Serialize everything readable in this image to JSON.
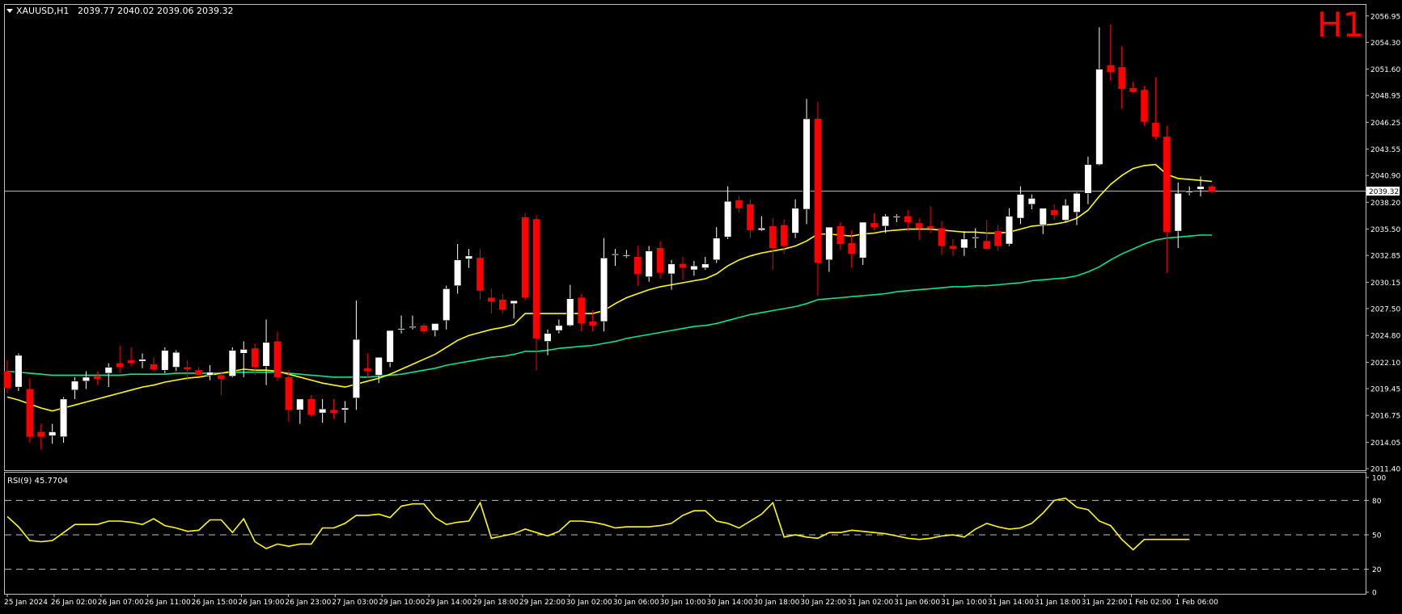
{
  "app": {
    "symbol_label": "XAUUSD,H1",
    "ohlc": "2039.77 2040.02 2039.06 2039.32",
    "timeframe_badge": "H1",
    "current_price_label": "2039.32",
    "rsi_label": "RSI(9) 45.7704"
  },
  "colors": {
    "background": "#000000",
    "frame": "#c0c0c0",
    "bull_candle": "#ffffff",
    "bear_candle": "#ff0000",
    "wick_bull": "#ffffff",
    "wick_bear": "#ff0000",
    "ma_fast": "#ffff00",
    "ma_slow": "#00e59a",
    "rsi_line": "#ffff00",
    "badge": "#ff0000",
    "text": "#ffffff"
  },
  "chart_data": [
    {
      "type": "candlestick",
      "title": "XAUUSD,H1",
      "y_axis_ticks": [
        "2056.95",
        "2054.30",
        "2051.60",
        "2048.95",
        "2046.25",
        "2043.55",
        "2040.90",
        "2038.20",
        "2035.50",
        "2032.85",
        "2030.15",
        "2027.50",
        "2024.80",
        "2022.10",
        "2019.45",
        "2016.75",
        "2014.05",
        "2011.40"
      ],
      "ylim": [
        2011.4,
        2057.5
      ],
      "last_price": 2039.32,
      "x_tick_labels": [
        "25 Jan 2024",
        "26 Jan 02:00",
        "26 Jan 07:00",
        "26 Jan 11:00",
        "26 Jan 15:00",
        "26 Jan 19:00",
        "26 Jan 23:00",
        "27 Jan 03:00",
        "29 Jan 10:00",
        "29 Jan 14:00",
        "29 Jan 18:00",
        "29 Jan 22:00",
        "30 Jan 02:00",
        "30 Jan 06:00",
        "30 Jan 10:00",
        "30 Jan 14:00",
        "30 Jan 18:00",
        "30 Jan 22:00",
        "31 Jan 02:00",
        "31 Jan 06:00",
        "31 Jan 10:00",
        "31 Jan 14:00",
        "31 Jan 18:00",
        "31 Jan 22:00",
        "1 Feb 02:00",
        "1 Feb 06:00"
      ],
      "candles": [
        [
          2021.2,
          2022.3,
          2019.0,
          2019.5
        ],
        [
          2019.6,
          2023.0,
          2019.2,
          2022.8
        ],
        [
          2019.4,
          2020.5,
          2014.0,
          2014.6
        ],
        [
          2015.1,
          2015.9,
          2013.3,
          2014.6
        ],
        [
          2014.7,
          2015.9,
          2013.9,
          2015.1
        ],
        [
          2014.6,
          2018.6,
          2014.0,
          2018.4
        ],
        [
          2019.3,
          2020.6,
          2018.4,
          2020.2
        ],
        [
          2020.2,
          2021.2,
          2019.4,
          2020.6
        ],
        [
          2020.7,
          2021.2,
          2019.8,
          2020.4
        ],
        [
          2021.0,
          2022.0,
          2019.6,
          2021.6
        ],
        [
          2022.0,
          2023.8,
          2021.0,
          2021.6
        ],
        [
          2022.3,
          2023.6,
          2021.7,
          2022.0
        ],
        [
          2022.2,
          2023.0,
          2021.5,
          2022.4
        ],
        [
          2021.9,
          2022.6,
          2021.2,
          2021.4
        ],
        [
          2021.3,
          2023.6,
          2021.0,
          2023.3
        ],
        [
          2021.6,
          2023.3,
          2021.2,
          2023.1
        ],
        [
          2021.6,
          2022.3,
          2020.3,
          2021.4
        ],
        [
          2021.3,
          2021.6,
          2020.8,
          2020.8
        ],
        [
          2020.8,
          2021.8,
          2020.3,
          2021.1
        ],
        [
          2020.8,
          2021.2,
          2018.8,
          2020.4
        ],
        [
          2020.7,
          2023.6,
          2020.6,
          2023.3
        ],
        [
          2023.0,
          2024.2,
          2020.6,
          2023.4
        ],
        [
          2023.5,
          2024.0,
          2020.8,
          2021.6
        ],
        [
          2021.7,
          2026.4,
          2019.8,
          2024.1
        ],
        [
          2024.2,
          2025.2,
          2020.2,
          2020.6
        ],
        [
          2020.6,
          2021.3,
          2016.1,
          2017.3
        ],
        [
          2017.3,
          2018.2,
          2015.9,
          2018.4
        ],
        [
          2018.4,
          2018.8,
          2016.6,
          2016.8
        ],
        [
          2017.0,
          2018.4,
          2016.0,
          2017.4
        ],
        [
          2017.3,
          2018.4,
          2016.4,
          2017.0
        ],
        [
          2017.3,
          2018.2,
          2016.0,
          2017.5
        ],
        [
          2018.5,
          2028.3,
          2017.3,
          2024.4
        ],
        [
          2021.5,
          2023.0,
          2020.5,
          2021.2
        ],
        [
          2020.8,
          2022.6,
          2020.0,
          2022.6
        ],
        [
          2022.1,
          2025.2,
          2021.6,
          2025.3
        ],
        [
          2025.5,
          2026.8,
          2025.0,
          2025.5
        ],
        [
          2025.6,
          2026.8,
          2025.4,
          2025.7
        ],
        [
          2025.8,
          2026.0,
          2025.0,
          2025.2
        ],
        [
          2025.3,
          2026.0,
          2024.7,
          2026.0
        ],
        [
          2026.3,
          2029.8,
          2025.4,
          2029.5
        ],
        [
          2029.8,
          2034.0,
          2029.0,
          2032.4
        ],
        [
          2032.5,
          2033.5,
          2031.6,
          2032.8
        ],
        [
          2032.6,
          2033.5,
          2028.4,
          2029.3
        ],
        [
          2028.6,
          2029.5,
          2027.0,
          2028.2
        ],
        [
          2028.4,
          2029.0,
          2027.0,
          2027.4
        ],
        [
          2028.0,
          2028.3,
          2026.5,
          2028.3
        ],
        [
          2036.7,
          2037.1,
          2028.3,
          2028.6
        ],
        [
          2036.5,
          2036.9,
          2021.3,
          2024.5
        ],
        [
          2024.2,
          2025.4,
          2022.8,
          2025.0
        ],
        [
          2025.3,
          2026.4,
          2025.0,
          2025.8
        ],
        [
          2025.8,
          2029.9,
          2025.7,
          2028.5
        ],
        [
          2028.6,
          2029.0,
          2025.2,
          2026.0
        ],
        [
          2026.2,
          2027.3,
          2025.2,
          2025.8
        ],
        [
          2026.2,
          2034.6,
          2025.2,
          2032.6
        ],
        [
          2032.9,
          2033.5,
          2031.8,
          2033.0
        ],
        [
          2032.8,
          2033.4,
          2032.6,
          2032.9
        ],
        [
          2032.7,
          2033.8,
          2029.8,
          2031.0
        ],
        [
          2030.7,
          2033.8,
          2030.2,
          2033.3
        ],
        [
          2033.6,
          2034.3,
          2030.5,
          2031.1
        ],
        [
          2031.0,
          2032.4,
          2029.4,
          2032.0
        ],
        [
          2032.0,
          2032.7,
          2030.4,
          2031.6
        ],
        [
          2031.4,
          2032.3,
          2030.8,
          2031.8
        ],
        [
          2031.6,
          2032.7,
          2031.4,
          2032.0
        ],
        [
          2032.4,
          2035.7,
          2032.1,
          2034.6
        ],
        [
          2034.7,
          2039.8,
          2034.5,
          2038.3
        ],
        [
          2038.4,
          2038.8,
          2037.2,
          2037.6
        ],
        [
          2038.0,
          2038.5,
          2034.6,
          2035.4
        ],
        [
          2035.4,
          2036.8,
          2035.3,
          2035.6
        ],
        [
          2035.8,
          2036.6,
          2031.4,
          2033.6
        ],
        [
          2035.9,
          2036.5,
          2033.0,
          2033.8
        ],
        [
          2035.1,
          2038.5,
          2034.6,
          2037.6
        ],
        [
          2037.5,
          2048.6,
          2036.0,
          2046.6
        ],
        [
          2046.6,
          2048.3,
          2028.8,
          2032.1
        ],
        [
          2032.4,
          2035.6,
          2031.2,
          2035.7
        ],
        [
          2035.8,
          2036.2,
          2033.4,
          2034.0
        ],
        [
          2034.1,
          2035.4,
          2031.6,
          2033.0
        ],
        [
          2032.6,
          2035.9,
          2031.9,
          2036.2
        ],
        [
          2036.1,
          2037.1,
          2035.4,
          2035.7
        ],
        [
          2035.8,
          2037.0,
          2035.1,
          2036.8
        ],
        [
          2036.7,
          2037.0,
          2036.2,
          2036.8
        ],
        [
          2036.8,
          2037.4,
          2035.3,
          2036.2
        ],
        [
          2036.1,
          2036.6,
          2034.4,
          2035.6
        ],
        [
          2035.8,
          2037.8,
          2035.1,
          2035.6
        ],
        [
          2035.6,
          2036.3,
          2032.9,
          2033.8
        ],
        [
          2033.8,
          2034.5,
          2032.8,
          2033.5
        ],
        [
          2033.6,
          2035.3,
          2032.8,
          2034.5
        ],
        [
          2034.6,
          2035.6,
          2033.6,
          2034.7
        ],
        [
          2034.3,
          2036.4,
          2033.4,
          2033.5
        ],
        [
          2035.3,
          2035.9,
          2033.3,
          2033.8
        ],
        [
          2034.0,
          2037.6,
          2033.8,
          2036.8
        ],
        [
          2036.6,
          2039.8,
          2036.0,
          2039.0
        ],
        [
          2038.0,
          2039.0,
          2037.5,
          2038.6
        ],
        [
          2035.9,
          2037.6,
          2035.0,
          2037.6
        ],
        [
          2037.4,
          2038.0,
          2036.4,
          2036.9
        ],
        [
          2036.4,
          2038.5,
          2036.2,
          2037.9
        ],
        [
          2037.2,
          2039.2,
          2035.9,
          2039.1
        ],
        [
          2039.1,
          2042.8,
          2038.0,
          2042.0
        ],
        [
          2042.0,
          2055.8,
          2041.9,
          2051.6
        ],
        [
          2052.0,
          2056.1,
          2050.4,
          2051.3
        ],
        [
          2051.8,
          2053.9,
          2047.6,
          2049.6
        ],
        [
          2049.7,
          2050.3,
          2049.2,
          2049.3
        ],
        [
          2049.5,
          2049.9,
          2045.9,
          2046.3
        ],
        [
          2046.2,
          2050.8,
          2044.5,
          2044.8
        ],
        [
          2044.8,
          2045.9,
          2031.1,
          2035.2
        ],
        [
          2035.3,
          2040.2,
          2033.6,
          2039.1
        ],
        [
          2039.3,
          2039.8,
          2038.9,
          2039.3
        ],
        [
          2039.5,
          2040.8,
          2038.8,
          2039.8
        ],
        [
          2039.8,
          2040.0,
          2039.1,
          2039.3
        ]
      ],
      "ma_fast": [
        2018.6,
        2018.3,
        2017.9,
        2017.5,
        2017.2,
        2017.5,
        2017.8,
        2018.1,
        2018.4,
        2018.7,
        2019.0,
        2019.3,
        2019.6,
        2019.8,
        2020.1,
        2020.3,
        2020.5,
        2020.6,
        2020.8,
        2021.0,
        2021.2,
        2021.4,
        2021.3,
        2021.3,
        2021.2,
        2020.9,
        2020.6,
        2020.3,
        2020.0,
        2019.8,
        2019.6,
        2019.9,
        2020.2,
        2020.5,
        2020.9,
        2021.4,
        2021.9,
        2022.4,
        2022.9,
        2023.6,
        2024.3,
        2024.8,
        2025.1,
        2025.4,
        2025.6,
        2025.9,
        2027.0,
        2027.0,
        2027.0,
        2027.0,
        2027.0,
        2027.0,
        2027.0,
        2027.3,
        2028.0,
        2028.6,
        2029.0,
        2029.4,
        2029.7,
        2029.9,
        2030.1,
        2030.3,
        2030.5,
        2031.0,
        2031.8,
        2032.4,
        2032.8,
        2033.1,
        2033.3,
        2033.5,
        2033.8,
        2034.3,
        2035.0,
        2035.0,
        2034.9,
        2034.8,
        2035.0,
        2035.1,
        2035.3,
        2035.4,
        2035.5,
        2035.5,
        2035.5,
        2035.4,
        2035.3,
        2035.2,
        2035.2,
        2035.1,
        2035.1,
        2035.2,
        2035.5,
        2035.8,
        2035.9,
        2036.0,
        2036.2,
        2036.6,
        2037.4,
        2038.8,
        2040.0,
        2040.9,
        2041.6,
        2041.9,
        2042.0,
        2041.0,
        2040.6,
        2040.5,
        2040.4,
        2040.3
      ],
      "ma_slow": [
        2021.2,
        2021.1,
        2021.0,
        2020.9,
        2020.8,
        2020.8,
        2020.8,
        2020.8,
        2020.8,
        2020.8,
        2020.8,
        2020.9,
        2020.9,
        2020.9,
        2020.9,
        2021.0,
        2021.0,
        2021.0,
        2021.0,
        2021.0,
        2021.1,
        2021.1,
        2021.1,
        2021.1,
        2021.1,
        2021.0,
        2020.9,
        2020.8,
        2020.7,
        2020.6,
        2020.6,
        2020.6,
        2020.6,
        2020.7,
        2020.8,
        2020.9,
        2021.1,
        2021.3,
        2021.5,
        2021.8,
        2022.0,
        2022.2,
        2022.4,
        2022.6,
        2022.7,
        2022.9,
        2023.2,
        2023.2,
        2023.3,
        2023.5,
        2023.6,
        2023.7,
        2023.8,
        2024.0,
        2024.2,
        2024.5,
        2024.7,
        2024.9,
        2025.1,
        2025.3,
        2025.5,
        2025.7,
        2025.8,
        2026.0,
        2026.3,
        2026.6,
        2026.9,
        2027.1,
        2027.3,
        2027.5,
        2027.7,
        2028.0,
        2028.4,
        2028.5,
        2028.6,
        2028.7,
        2028.8,
        2028.9,
        2029.0,
        2029.2,
        2029.3,
        2029.4,
        2029.5,
        2029.6,
        2029.7,
        2029.7,
        2029.8,
        2029.8,
        2029.9,
        2030.0,
        2030.1,
        2030.3,
        2030.4,
        2030.5,
        2030.6,
        2030.8,
        2031.2,
        2031.7,
        2032.4,
        2033.0,
        2033.5,
        2034.0,
        2034.4,
        2034.6,
        2034.7,
        2034.8,
        2034.9,
        2034.9
      ]
    },
    {
      "type": "line",
      "title": "RSI(9) 45.7704",
      "ylim": [
        0,
        100
      ],
      "y_axis_ticks": [
        "100",
        "80",
        "50",
        "20",
        "0"
      ],
      "levels": [
        80,
        50,
        20
      ],
      "series": [
        {
          "name": "RSI(9)",
          "values": [
            66,
            57,
            45,
            44,
            45,
            52,
            59,
            59,
            59,
            62,
            62,
            61,
            59,
            64,
            58,
            56,
            53,
            54,
            63,
            63,
            52,
            64,
            44,
            38,
            42,
            40,
            42,
            42,
            56,
            56,
            60,
            67,
            67,
            68,
            65,
            75,
            77,
            77,
            65,
            59,
            61,
            62,
            78,
            47,
            49,
            51,
            55,
            52,
            49,
            53,
            62,
            62,
            61,
            59,
            56,
            57,
            57,
            57,
            58,
            60,
            67,
            71,
            71,
            62,
            60,
            56,
            62,
            68,
            78,
            48,
            50,
            48,
            47,
            52,
            52,
            54,
            53,
            52,
            51,
            49,
            47,
            46,
            47,
            49,
            50,
            48,
            55,
            60,
            57,
            55,
            56,
            60,
            69,
            80,
            82,
            74,
            72,
            62,
            58,
            46,
            37,
            46,
            46,
            46,
            46,
            46
          ]
        }
      ]
    }
  ]
}
